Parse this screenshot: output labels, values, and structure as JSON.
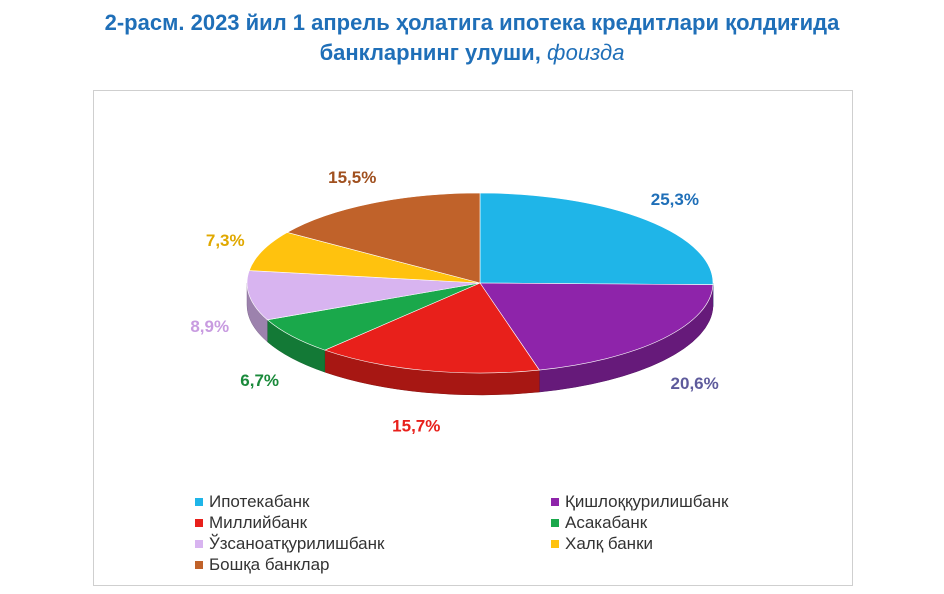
{
  "title": {
    "line1": "2-расм. 2023 йил 1 апрель ҳолатига ипотека кредитлари қолдиғида",
    "line2": "банкларнинг улуши,",
    "unit": "фоизда"
  },
  "chart_data": {
    "type": "pie",
    "title": "2-расм. 2023 йил 1 апрель ҳолатига ипотека кредитлари қолдиғида банкларнинг улуши, фоизда",
    "unit": "%",
    "legend_position": "bottom",
    "slices": [
      {
        "name": "Ипотекабанк",
        "value": 25.3,
        "label": "25,3%",
        "color": "#1fb5e8",
        "label_color": "#1f6fb8"
      },
      {
        "name": "Қишлоққурилишбанк",
        "value": 20.6,
        "label": "20,6%",
        "color": "#8e24aa",
        "label_color": "#5e5b9c"
      },
      {
        "name": "Миллийбанк",
        "value": 15.7,
        "label": "15,7%",
        "color": "#e8201b",
        "label_color": "#e8201b"
      },
      {
        "name": "Асакабанк",
        "value": 6.7,
        "label": "6,7%",
        "color": "#1aa84b",
        "label_color": "#1a8a3b"
      },
      {
        "name": "Ўзсаноатқурилишбанк",
        "value": 8.9,
        "label": "8,9%",
        "color": "#d8b4f0",
        "label_color": "#c89be0"
      },
      {
        "name": "Халқ банки",
        "value": 7.3,
        "label": "7,3%",
        "color": "#ffc20e",
        "label_color": "#e0a800"
      },
      {
        "name": "Бошқа банклар",
        "value": 15.5,
        "label": "15,5%",
        "color": "#c0622a",
        "label_color": "#a0501f"
      }
    ]
  }
}
